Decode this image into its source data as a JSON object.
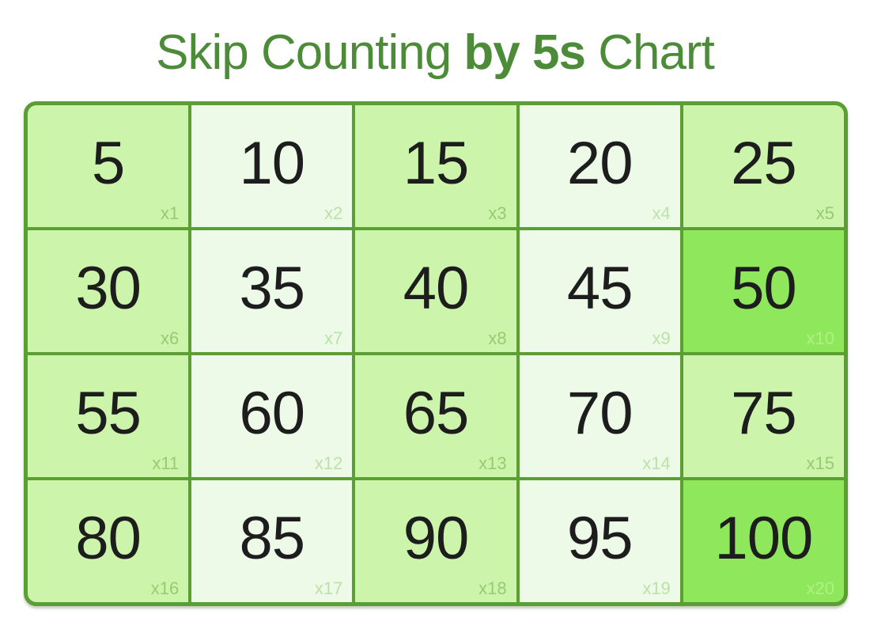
{
  "title": {
    "prefix": "Skip Counting ",
    "highlight": "by 5s",
    "suffix": " Chart",
    "full": "Skip Counting by 5s Chart"
  },
  "colors": {
    "title_green": "#4c8b37",
    "grid_border": "#5b9e33",
    "cell_light": "#ccf5ab",
    "cell_pale": "#eefae8",
    "cell_bright": "#8fe85c",
    "number_text": "#1d1d1d",
    "label_on_light": "#97cb72",
    "label_on_pale": "#bce2a8",
    "label_on_bright": "#aff184"
  },
  "chart_data": {
    "type": "table",
    "title": "Skip Counting by 5s Chart",
    "step": 5,
    "rows": 4,
    "columns": 5,
    "cells": [
      {
        "value": "5",
        "multiplier": "x1",
        "tone": "light"
      },
      {
        "value": "10",
        "multiplier": "x2",
        "tone": "pale"
      },
      {
        "value": "15",
        "multiplier": "x3",
        "tone": "light"
      },
      {
        "value": "20",
        "multiplier": "x4",
        "tone": "pale"
      },
      {
        "value": "25",
        "multiplier": "x5",
        "tone": "light"
      },
      {
        "value": "30",
        "multiplier": "x6",
        "tone": "light"
      },
      {
        "value": "35",
        "multiplier": "x7",
        "tone": "pale"
      },
      {
        "value": "40",
        "multiplier": "x8",
        "tone": "light"
      },
      {
        "value": "45",
        "multiplier": "x9",
        "tone": "pale"
      },
      {
        "value": "50",
        "multiplier": "x10",
        "tone": "bright"
      },
      {
        "value": "55",
        "multiplier": "x11",
        "tone": "light"
      },
      {
        "value": "60",
        "multiplier": "x12",
        "tone": "pale"
      },
      {
        "value": "65",
        "multiplier": "x13",
        "tone": "light"
      },
      {
        "value": "70",
        "multiplier": "x14",
        "tone": "pale"
      },
      {
        "value": "75",
        "multiplier": "x15",
        "tone": "light"
      },
      {
        "value": "80",
        "multiplier": "x16",
        "tone": "light"
      },
      {
        "value": "85",
        "multiplier": "x17",
        "tone": "pale"
      },
      {
        "value": "90",
        "multiplier": "x18",
        "tone": "light"
      },
      {
        "value": "95",
        "multiplier": "x19",
        "tone": "pale"
      },
      {
        "value": "100",
        "multiplier": "x20",
        "tone": "bright"
      }
    ]
  }
}
